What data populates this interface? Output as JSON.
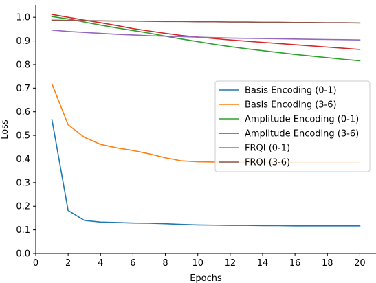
{
  "chart_data": {
    "type": "line",
    "title": "",
    "xlabel": "Epochs",
    "ylabel": "Loss",
    "xlim": [
      0,
      21
    ],
    "ylim": [
      0.0,
      1.05
    ],
    "xticks": [
      0,
      2,
      4,
      6,
      8,
      10,
      12,
      14,
      16,
      18,
      20
    ],
    "xtick_labels": [
      "0",
      "2",
      "4",
      "6",
      "8",
      "10",
      "12",
      "14",
      "16",
      "18",
      "20"
    ],
    "yticks": [
      0.0,
      0.1,
      0.2,
      0.3,
      0.4,
      0.5,
      0.6,
      0.7,
      0.8,
      0.9,
      1.0
    ],
    "ytick_labels": [
      "0.0",
      "0.1",
      "0.2",
      "0.3",
      "0.4",
      "0.5",
      "0.6",
      "0.7",
      "0.8",
      "0.9",
      "1.0"
    ],
    "grid": false,
    "legend_position": "center-right",
    "x": [
      1,
      2,
      3,
      4,
      5,
      6,
      7,
      8,
      9,
      10,
      11,
      12,
      13,
      14,
      15,
      16,
      17,
      18,
      19,
      20
    ],
    "series": [
      {
        "name": "Basis Encoding (0-1)",
        "color": "#1f77b4",
        "values": [
          0.567,
          0.182,
          0.14,
          0.133,
          0.131,
          0.129,
          0.128,
          0.126,
          0.123,
          0.121,
          0.12,
          0.119,
          0.119,
          0.118,
          0.118,
          0.117,
          0.117,
          0.117,
          0.117,
          0.117
        ]
      },
      {
        "name": "Basis Encoding (3-6)",
        "color": "#ff7f0e",
        "values": [
          0.718,
          0.545,
          0.492,
          0.462,
          0.447,
          0.436,
          0.422,
          0.405,
          0.392,
          0.388,
          0.387,
          0.386,
          0.386,
          0.385,
          0.385,
          0.385,
          0.385,
          0.385,
          0.385,
          0.385
        ]
      },
      {
        "name": "Amplitude Encoding (0-1)",
        "color": "#2ca02c",
        "values": [
          1.003,
          0.993,
          0.98,
          0.967,
          0.955,
          0.944,
          0.933,
          0.92,
          0.908,
          0.897,
          0.886,
          0.876,
          0.867,
          0.859,
          0.851,
          0.843,
          0.836,
          0.829,
          0.822,
          0.816
        ]
      },
      {
        "name": "Amplitude Encoding (3-6)",
        "color": "#d62728",
        "values": [
          1.012,
          1.0,
          0.988,
          0.977,
          0.965,
          0.952,
          0.942,
          0.932,
          0.923,
          0.916,
          0.91,
          0.904,
          0.899,
          0.894,
          0.889,
          0.884,
          0.879,
          0.874,
          0.869,
          0.864
        ]
      },
      {
        "name": "FRQI (0-1)",
        "color": "#9467bd",
        "values": [
          0.946,
          0.94,
          0.936,
          0.932,
          0.928,
          0.925,
          0.922,
          0.92,
          0.918,
          0.916,
          0.914,
          0.912,
          0.911,
          0.91,
          0.909,
          0.908,
          0.907,
          0.906,
          0.905,
          0.904
        ]
      },
      {
        "name": "FRQI (3-6)",
        "color": "#8c564b",
        "values": [
          0.988,
          0.987,
          0.986,
          0.985,
          0.984,
          0.984,
          0.983,
          0.982,
          0.982,
          0.981,
          0.981,
          0.98,
          0.98,
          0.979,
          0.979,
          0.978,
          0.978,
          0.977,
          0.977,
          0.976
        ]
      }
    ]
  }
}
